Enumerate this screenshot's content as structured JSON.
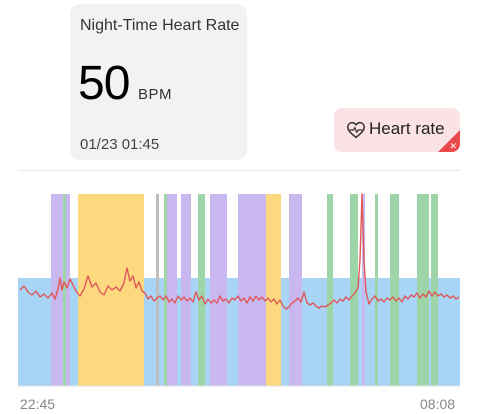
{
  "card": {
    "title": "Night-Time Heart Rate",
    "value": "50",
    "unit": "BPM",
    "timestamp": "01/23 01:45"
  },
  "legend": {
    "label": "Heart rate",
    "icon": "heart-outline-icon",
    "close_icon": "close-icon",
    "accent_color": "#e94a4a",
    "background_color": "#fbe3e5"
  },
  "colors": {
    "deep_sleep": "#a8d4f5",
    "light_sleep": "#c9b8f0",
    "rem": "#9ed5a8",
    "awake": "#fcd97e",
    "gray": "#bdbdbd",
    "line": "#e05757"
  },
  "chart_data": {
    "type": "line",
    "x_tick_labels": [
      "22:45",
      "08:08"
    ]
  }
}
